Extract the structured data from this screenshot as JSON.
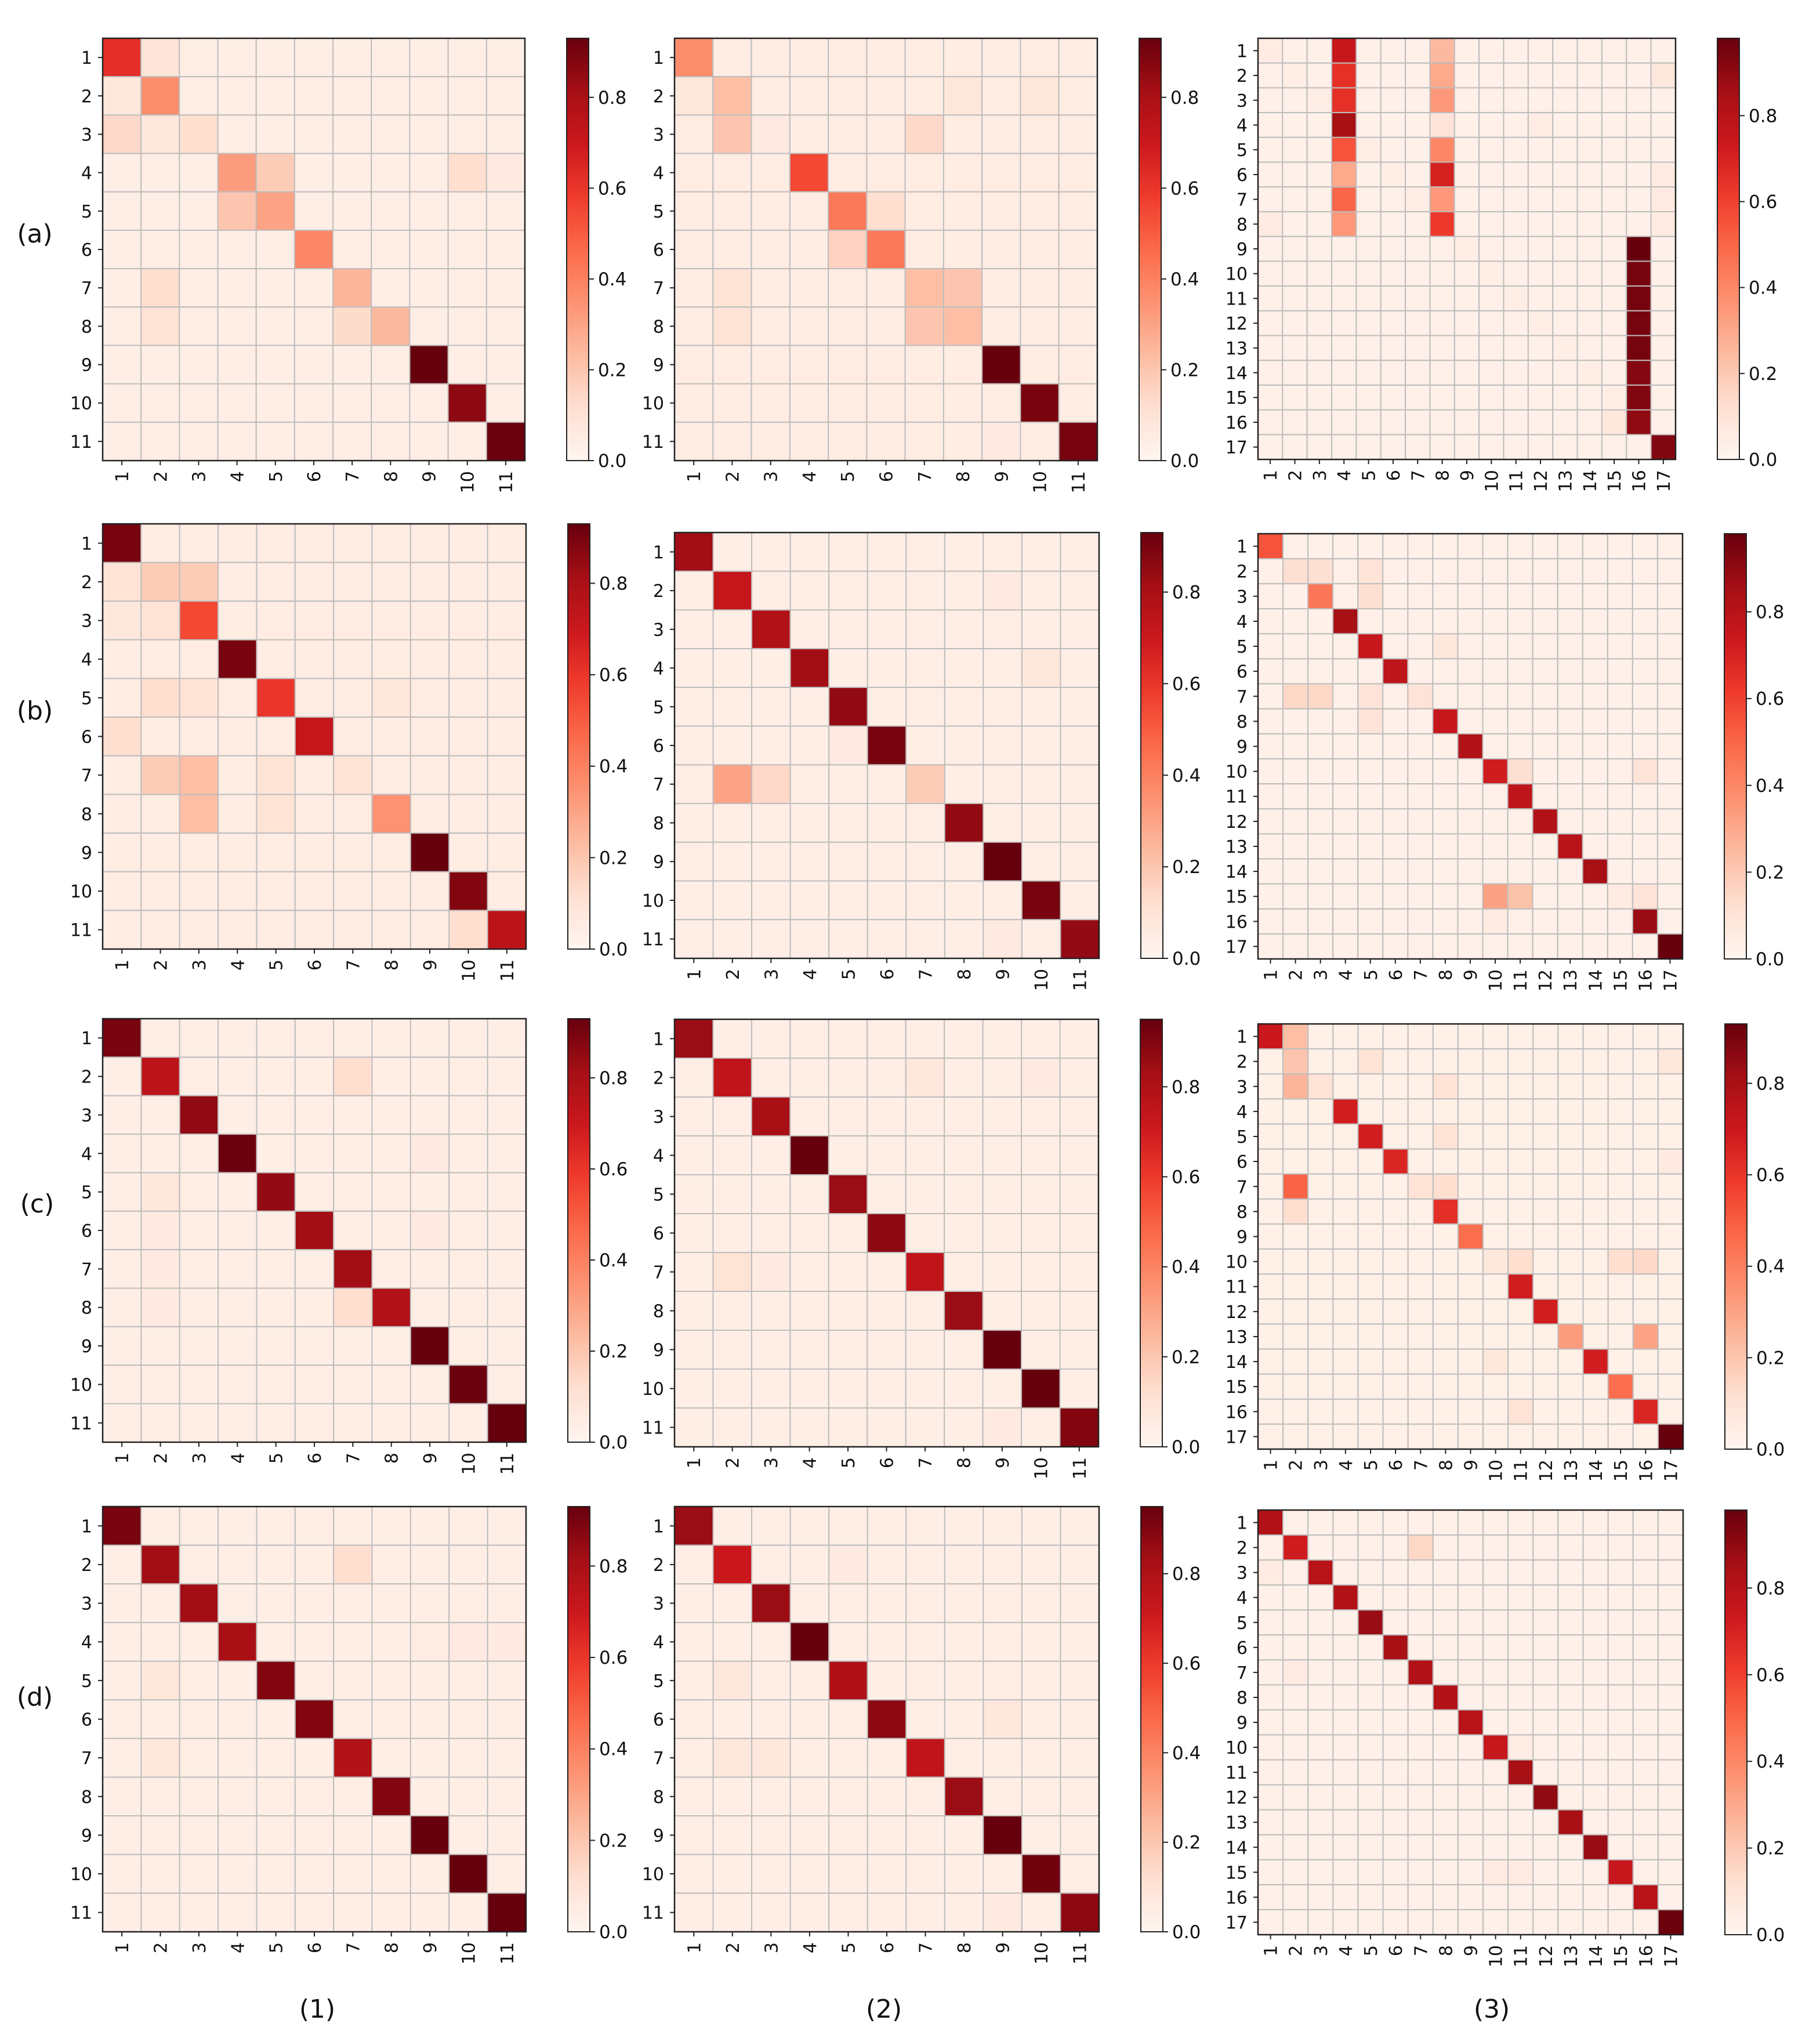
{
  "figure": {
    "row_labels": [
      "(a)",
      "(b)",
      "(c)",
      "(d)"
    ],
    "col_labels": [
      "(1)",
      "(2)",
      "(3)"
    ]
  },
  "colors": {
    "colormap": "Reds",
    "low": "#fff5f0",
    "mid": "#fb6a4a",
    "high": "#67000d",
    "grid": "#bdbdbd"
  },
  "chart_data": [
    {
      "type": "heatmap",
      "panel": "a1",
      "size": 11,
      "vmax": 0.93,
      "colorbar_ticks": [
        0.0,
        0.2,
        0.4,
        0.6,
        0.8
      ],
      "x_tick_labels": [
        "1",
        "2",
        "3",
        "4",
        "5",
        "6",
        "7",
        "8",
        "9",
        "10",
        "11"
      ],
      "y_tick_labels": [
        "1",
        "2",
        "3",
        "4",
        "5",
        "6",
        "7",
        "8",
        "9",
        "10",
        "11"
      ],
      "diag": [
        0.62,
        0.36,
        0.12,
        0.32,
        0.3,
        0.38,
        0.25,
        0.24,
        0.93,
        0.86,
        0.92
      ],
      "off": [
        [
          0,
          1,
          0.09
        ],
        [
          1,
          0,
          0.08
        ],
        [
          2,
          0,
          0.14
        ],
        [
          2,
          1,
          0.08
        ],
        [
          2,
          2,
          0.12
        ],
        [
          3,
          4,
          0.18
        ],
        [
          4,
          3,
          0.2
        ],
        [
          6,
          1,
          0.12
        ],
        [
          7,
          1,
          0.1
        ],
        [
          7,
          6,
          0.13
        ],
        [
          3,
          9,
          0.12
        ],
        [
          3,
          10,
          0.06
        ]
      ],
      "bg": 0.04
    },
    {
      "type": "heatmap",
      "panel": "a2",
      "size": 11,
      "vmax": 0.93,
      "colorbar_ticks": [
        0.0,
        0.2,
        0.4,
        0.6,
        0.8
      ],
      "x_tick_labels": [
        "1",
        "2",
        "3",
        "4",
        "5",
        "6",
        "7",
        "8",
        "9",
        "10",
        "11"
      ],
      "y_tick_labels": [
        "1",
        "2",
        "3",
        "4",
        "5",
        "6",
        "7",
        "8",
        "9",
        "10",
        "11"
      ],
      "diag": [
        0.36,
        0.22,
        0.06,
        0.55,
        0.42,
        0.42,
        0.22,
        0.22,
        0.93,
        0.9,
        0.9
      ],
      "off": [
        [
          1,
          0,
          0.08
        ],
        [
          2,
          1,
          0.2
        ],
        [
          2,
          6,
          0.14
        ],
        [
          4,
          5,
          0.12
        ],
        [
          5,
          4,
          0.16
        ],
        [
          6,
          7,
          0.2
        ],
        [
          7,
          6,
          0.2
        ],
        [
          7,
          1,
          0.1
        ],
        [
          6,
          1,
          0.1
        ],
        [
          1,
          7,
          0.08
        ],
        [
          1,
          9,
          0.08
        ],
        [
          10,
          8,
          0.06
        ]
      ],
      "bg": 0.05
    },
    {
      "type": "heatmap",
      "panel": "a3",
      "size": 17,
      "vmax": 0.98,
      "colorbar_ticks": [
        0.0,
        0.2,
        0.4,
        0.6,
        0.8
      ],
      "x_tick_labels": [
        "1",
        "2",
        "3",
        "4",
        "5",
        "6",
        "7",
        "8",
        "9",
        "10",
        "11",
        "12",
        "13",
        "14",
        "15",
        "16",
        "17"
      ],
      "y_tick_labels": [
        "1",
        "2",
        "3",
        "4",
        "5",
        "6",
        "7",
        "8",
        "9",
        "10",
        "11",
        "12",
        "13",
        "14",
        "15",
        "16",
        "17"
      ],
      "diag": [
        0.06,
        0.04,
        0.04,
        0.85,
        0.04,
        0.04,
        0.04,
        0.45,
        0.04,
        0.04,
        0.04,
        0.04,
        0.04,
        0.04,
        0.04,
        0.92,
        0.93
      ],
      "col_blocks": [
        {
          "col": 3,
          "rows": [
            0,
            1,
            2,
            3,
            4,
            5,
            6,
            7
          ],
          "values": [
            0.75,
            0.65,
            0.65,
            0.85,
            0.55,
            0.3,
            0.5,
            0.35
          ]
        },
        {
          "col": 7,
          "rows": [
            0,
            1,
            2,
            3,
            4,
            5,
            6,
            7
          ],
          "values": [
            0.25,
            0.3,
            0.35,
            0.1,
            0.4,
            0.7,
            0.35,
            0.62
          ]
        },
        {
          "col": 15,
          "rows": [
            8,
            9,
            10,
            11,
            12,
            13,
            14,
            15
          ],
          "values": [
            0.98,
            0.95,
            0.95,
            0.95,
            0.95,
            0.92,
            0.93,
            0.9
          ]
        }
      ],
      "off": [
        [
          1,
          16,
          0.08
        ],
        [
          5,
          16,
          0.06
        ],
        [
          6,
          16,
          0.06
        ],
        [
          7,
          16,
          0.06
        ],
        [
          3,
          11,
          0.05
        ],
        [
          7,
          0,
          0.06
        ],
        [
          15,
          14,
          0.08
        ]
      ],
      "bg": 0.03
    },
    {
      "type": "heatmap",
      "panel": "b1",
      "size": 11,
      "vmax": 0.93,
      "colorbar_ticks": [
        0.0,
        0.2,
        0.4,
        0.6,
        0.8
      ],
      "x_tick_labels": [
        "1",
        "2",
        "3",
        "4",
        "5",
        "6",
        "7",
        "8",
        "9",
        "10",
        "11"
      ],
      "y_tick_labels": [
        "1",
        "2",
        "3",
        "4",
        "5",
        "6",
        "7",
        "8",
        "9",
        "10",
        "11"
      ],
      "diag": [
        0.9,
        0.18,
        0.55,
        0.9,
        0.6,
        0.72,
        0.1,
        0.35,
        0.98,
        0.88,
        0.75
      ],
      "off": [
        [
          1,
          0,
          0.1
        ],
        [
          1,
          2,
          0.18
        ],
        [
          2,
          0,
          0.08
        ],
        [
          2,
          1,
          0.1
        ],
        [
          4,
          1,
          0.12
        ],
        [
          4,
          2,
          0.1
        ],
        [
          5,
          0,
          0.12
        ],
        [
          6,
          1,
          0.18
        ],
        [
          6,
          2,
          0.22
        ],
        [
          6,
          4,
          0.1
        ],
        [
          7,
          2,
          0.22
        ],
        [
          7,
          4,
          0.1
        ],
        [
          4,
          7,
          0.08
        ],
        [
          10,
          9,
          0.12
        ]
      ],
      "bg": 0.05
    },
    {
      "type": "heatmap",
      "panel": "b2",
      "size": 11,
      "vmax": 0.93,
      "colorbar_ticks": [
        0.0,
        0.2,
        0.4,
        0.6,
        0.8
      ],
      "x_tick_labels": [
        "1",
        "2",
        "3",
        "4",
        "5",
        "6",
        "7",
        "8",
        "9",
        "10",
        "11"
      ],
      "y_tick_labels": [
        "1",
        "2",
        "3",
        "4",
        "5",
        "6",
        "7",
        "8",
        "9",
        "10",
        "11"
      ],
      "diag": [
        0.82,
        0.72,
        0.78,
        0.82,
        0.85,
        0.9,
        0.18,
        0.85,
        0.97,
        0.9,
        0.85
      ],
      "off": [
        [
          6,
          1,
          0.3
        ],
        [
          6,
          2,
          0.14
        ],
        [
          5,
          4,
          0.06
        ],
        [
          3,
          9,
          0.08
        ],
        [
          1,
          8,
          0.06
        ],
        [
          10,
          8,
          0.06
        ]
      ],
      "bg": 0.04
    },
    {
      "type": "heatmap",
      "panel": "b3",
      "size": 17,
      "vmax": 0.98,
      "colorbar_ticks": [
        0.0,
        0.2,
        0.4,
        0.6,
        0.8
      ],
      "x_tick_labels": [
        "1",
        "2",
        "3",
        "4",
        "5",
        "6",
        "7",
        "8",
        "9",
        "10",
        "11",
        "12",
        "13",
        "14",
        "15",
        "16",
        "17"
      ],
      "y_tick_labels": [
        "1",
        "2",
        "3",
        "4",
        "5",
        "6",
        "7",
        "8",
        "9",
        "10",
        "11",
        "12",
        "13",
        "14",
        "15",
        "16",
        "17"
      ],
      "diag": [
        0.55,
        0.12,
        0.45,
        0.85,
        0.75,
        0.78,
        0.1,
        0.75,
        0.82,
        0.72,
        0.78,
        0.82,
        0.8,
        0.85,
        0.06,
        0.88,
        0.98
      ],
      "off": [
        [
          1,
          2,
          0.12
        ],
        [
          1,
          4,
          0.1
        ],
        [
          2,
          4,
          0.12
        ],
        [
          6,
          1,
          0.15
        ],
        [
          6,
          2,
          0.15
        ],
        [
          6,
          4,
          0.1
        ],
        [
          7,
          4,
          0.1
        ],
        [
          4,
          7,
          0.08
        ],
        [
          14,
          9,
          0.32
        ],
        [
          14,
          10,
          0.22
        ],
        [
          9,
          10,
          0.12
        ],
        [
          9,
          15,
          0.1
        ],
        [
          14,
          15,
          0.1
        ],
        [
          15,
          9,
          0.06
        ]
      ],
      "bg": 0.03
    },
    {
      "type": "heatmap",
      "panel": "c1",
      "size": 11,
      "vmax": 0.93,
      "colorbar_ticks": [
        0.0,
        0.2,
        0.4,
        0.6,
        0.8
      ],
      "x_tick_labels": [
        "1",
        "2",
        "3",
        "4",
        "5",
        "6",
        "7",
        "8",
        "9",
        "10",
        "11"
      ],
      "y_tick_labels": [
        "1",
        "2",
        "3",
        "4",
        "5",
        "6",
        "7",
        "8",
        "9",
        "10",
        "11"
      ],
      "diag": [
        0.9,
        0.75,
        0.85,
        0.92,
        0.85,
        0.82,
        0.82,
        0.78,
        0.98,
        0.92,
        0.95
      ],
      "off": [
        [
          1,
          6,
          0.12
        ],
        [
          4,
          1,
          0.08
        ],
        [
          5,
          1,
          0.06
        ],
        [
          6,
          1,
          0.06
        ],
        [
          7,
          1,
          0.06
        ],
        [
          7,
          6,
          0.12
        ],
        [
          3,
          8,
          0.06
        ],
        [
          5,
          8,
          0.06
        ]
      ],
      "bg": 0.04
    },
    {
      "type": "heatmap",
      "panel": "c2",
      "size": 11,
      "vmax": 0.95,
      "colorbar_ticks": [
        0.0,
        0.2,
        0.4,
        0.6,
        0.8
      ],
      "x_tick_labels": [
        "1",
        "2",
        "3",
        "4",
        "5",
        "6",
        "7",
        "8",
        "9",
        "10",
        "11"
      ],
      "y_tick_labels": [
        "1",
        "2",
        "3",
        "4",
        "5",
        "6",
        "7",
        "8",
        "9",
        "10",
        "11"
      ],
      "diag": [
        0.85,
        0.75,
        0.82,
        0.95,
        0.85,
        0.88,
        0.75,
        0.85,
        0.97,
        0.95,
        0.9
      ],
      "off": [
        [
          6,
          1,
          0.1
        ],
        [
          6,
          2,
          0.06
        ],
        [
          1,
          6,
          0.08
        ],
        [
          1,
          9,
          0.06
        ],
        [
          10,
          8,
          0.06
        ]
      ],
      "bg": 0.04
    },
    {
      "type": "heatmap",
      "panel": "c3",
      "size": 17,
      "vmax": 0.93,
      "colorbar_ticks": [
        0.0,
        0.2,
        0.4,
        0.6,
        0.8
      ],
      "x_tick_labels": [
        "1",
        "2",
        "3",
        "4",
        "5",
        "6",
        "7",
        "8",
        "9",
        "10",
        "11",
        "12",
        "13",
        "14",
        "15",
        "16",
        "17"
      ],
      "y_tick_labels": [
        "1",
        "2",
        "3",
        "4",
        "5",
        "6",
        "7",
        "8",
        "9",
        "10",
        "11",
        "12",
        "13",
        "14",
        "15",
        "16",
        "17"
      ],
      "diag": [
        0.7,
        0.2,
        0.1,
        0.68,
        0.68,
        0.65,
        0.1,
        0.62,
        0.45,
        0.08,
        0.68,
        0.68,
        0.32,
        0.68,
        0.45,
        0.65,
        0.93
      ],
      "off": [
        [
          0,
          1,
          0.22
        ],
        [
          2,
          1,
          0.25
        ],
        [
          6,
          1,
          0.48
        ],
        [
          7,
          1,
          0.12
        ],
        [
          1,
          4,
          0.1
        ],
        [
          2,
          7,
          0.1
        ],
        [
          4,
          7,
          0.1
        ],
        [
          6,
          7,
          0.12
        ],
        [
          9,
          10,
          0.12
        ],
        [
          9,
          14,
          0.12
        ],
        [
          9,
          15,
          0.14
        ],
        [
          12,
          15,
          0.3
        ],
        [
          15,
          10,
          0.1
        ],
        [
          1,
          16,
          0.08
        ],
        [
          5,
          16,
          0.06
        ],
        [
          13,
          9,
          0.08
        ]
      ],
      "bg": 0.03
    },
    {
      "type": "heatmap",
      "panel": "d1",
      "size": 11,
      "vmax": 0.93,
      "colorbar_ticks": [
        0.0,
        0.2,
        0.4,
        0.6,
        0.8
      ],
      "x_tick_labels": [
        "1",
        "2",
        "3",
        "4",
        "5",
        "6",
        "7",
        "8",
        "9",
        "10",
        "11"
      ],
      "y_tick_labels": [
        "1",
        "2",
        "3",
        "4",
        "5",
        "6",
        "7",
        "8",
        "9",
        "10",
        "11"
      ],
      "diag": [
        0.9,
        0.82,
        0.82,
        0.8,
        0.88,
        0.88,
        0.78,
        0.88,
        0.95,
        0.93,
        0.95
      ],
      "off": [
        [
          1,
          6,
          0.12
        ],
        [
          4,
          1,
          0.08
        ],
        [
          6,
          1,
          0.08
        ],
        [
          3,
          8,
          0.05
        ],
        [
          3,
          9,
          0.06
        ],
        [
          3,
          10,
          0.06
        ]
      ],
      "bg": 0.04
    },
    {
      "type": "heatmap",
      "panel": "d2",
      "size": 11,
      "vmax": 0.95,
      "colorbar_ticks": [
        0.0,
        0.2,
        0.4,
        0.6,
        0.8
      ],
      "x_tick_labels": [
        "1",
        "2",
        "3",
        "4",
        "5",
        "6",
        "7",
        "8",
        "9",
        "10",
        "11"
      ],
      "y_tick_labels": [
        "1",
        "2",
        "3",
        "4",
        "5",
        "6",
        "7",
        "8",
        "9",
        "10",
        "11"
      ],
      "diag": [
        0.85,
        0.72,
        0.85,
        0.95,
        0.8,
        0.88,
        0.75,
        0.85,
        0.97,
        0.93,
        0.88
      ],
      "off": [
        [
          4,
          1,
          0.08
        ],
        [
          6,
          1,
          0.08
        ],
        [
          6,
          2,
          0.08
        ],
        [
          1,
          4,
          0.06
        ],
        [
          5,
          8,
          0.08
        ],
        [
          10,
          8,
          0.06
        ]
      ],
      "bg": 0.04
    },
    {
      "type": "heatmap",
      "panel": "d3",
      "size": 17,
      "vmax": 0.98,
      "colorbar_ticks": [
        0.0,
        0.2,
        0.4,
        0.6,
        0.8
      ],
      "x_tick_labels": [
        "1",
        "2",
        "3",
        "4",
        "5",
        "6",
        "7",
        "8",
        "9",
        "10",
        "11",
        "12",
        "13",
        "14",
        "15",
        "16",
        "17"
      ],
      "y_tick_labels": [
        "1",
        "2",
        "3",
        "4",
        "5",
        "6",
        "7",
        "8",
        "9",
        "10",
        "11",
        "12",
        "13",
        "14",
        "15",
        "16",
        "17"
      ],
      "diag": [
        0.82,
        0.72,
        0.8,
        0.82,
        0.88,
        0.85,
        0.82,
        0.82,
        0.8,
        0.75,
        0.85,
        0.9,
        0.85,
        0.88,
        0.75,
        0.8,
        0.97
      ],
      "off": [
        [
          1,
          6,
          0.15
        ],
        [
          2,
          0,
          0.06
        ],
        [
          6,
          1,
          0.06
        ],
        [
          14,
          9,
          0.06
        ],
        [
          14,
          10,
          0.06
        ],
        [
          9,
          10,
          0.05
        ]
      ],
      "bg": 0.03
    }
  ]
}
